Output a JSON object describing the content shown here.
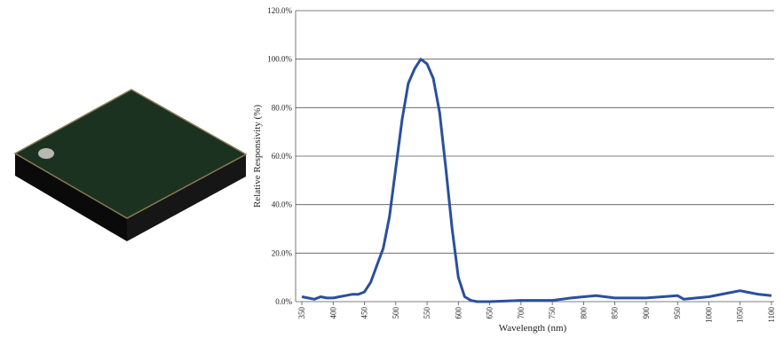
{
  "chart_data": {
    "type": "line",
    "xlabel": "Wavelength (nm)",
    "ylabel": "Relative Responsivity (%)",
    "x": [
      350,
      360,
      370,
      380,
      390,
      400,
      410,
      420,
      430,
      440,
      450,
      460,
      470,
      480,
      490,
      500,
      510,
      520,
      530,
      540,
      550,
      560,
      570,
      580,
      590,
      600,
      610,
      620,
      630,
      650,
      700,
      750,
      780,
      800,
      820,
      850,
      900,
      950,
      960,
      1000,
      1030,
      1050,
      1060,
      1080,
      1100
    ],
    "series": [
      {
        "color": "#2b4f9e",
        "values": [
          2,
          1.5,
          1,
          2,
          1.5,
          1.5,
          2,
          2.5,
          3,
          3,
          4,
          8,
          15,
          22,
          35,
          55,
          75,
          90,
          96,
          100,
          98,
          92,
          78,
          55,
          30,
          10,
          2,
          0.5,
          0,
          0,
          0.5,
          0.5,
          1.5,
          2,
          2.5,
          1.5,
          1.5,
          2.5,
          1,
          2,
          3.5,
          4.5,
          4,
          3,
          2.5
        ]
      }
    ],
    "xlim": [
      350,
      1100
    ],
    "xticks": [
      350,
      400,
      450,
      500,
      550,
      600,
      650,
      700,
      750,
      800,
      850,
      900,
      950,
      1000,
      1050,
      1100
    ],
    "ylim": [
      0,
      120
    ],
    "yticks": [
      {
        "value": 0,
        "label": "0.0%"
      },
      {
        "value": 20,
        "label": "20.0%"
      },
      {
        "value": 40,
        "label": "40.0%"
      },
      {
        "value": 60,
        "label": "60.0%"
      },
      {
        "value": 80,
        "label": "80.0%"
      },
      {
        "value": 100,
        "label": "100.0%"
      },
      {
        "value": 120,
        "label": "120.0%"
      }
    ],
    "grid": true
  }
}
